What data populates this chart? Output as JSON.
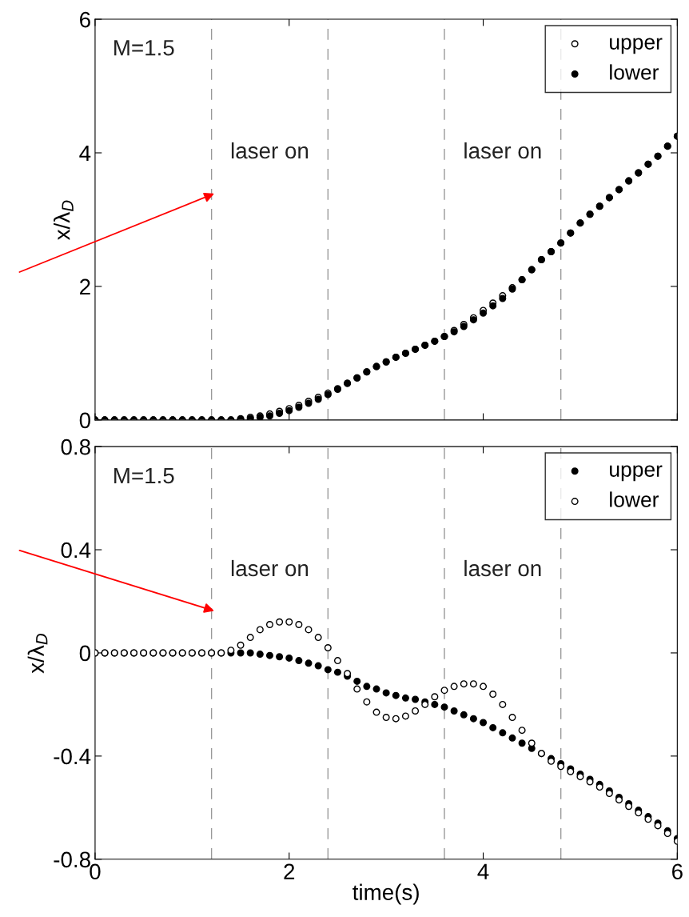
{
  "chart_data": [
    {
      "type": "scatter",
      "ylabel": "x/λ$_{D}$",
      "xlim": [
        0,
        6
      ],
      "ylim": [
        0,
        6
      ],
      "xticks": [
        0,
        2,
        4,
        6
      ],
      "yticks": [
        0,
        2,
        4,
        6
      ],
      "tick_labels": "y",
      "legend": "top right",
      "grid": false,
      "marker": "circle",
      "x": [
        0,
        0.1,
        0.2,
        0.3,
        0.4,
        0.5,
        0.6,
        0.7,
        0.8,
        0.9,
        1.0,
        1.1,
        1.2,
        1.3,
        1.4,
        1.5,
        1.6,
        1.7,
        1.8,
        1.9,
        2.0,
        2.1,
        2.2,
        2.3,
        2.4,
        2.5,
        2.6,
        2.7,
        2.8,
        2.9,
        3.0,
        3.1,
        3.2,
        3.3,
        3.4,
        3.5,
        3.6,
        3.7,
        3.8,
        3.9,
        4.0,
        4.1,
        4.2,
        4.3,
        4.4,
        4.5,
        4.6,
        4.7,
        4.8,
        4.9,
        5.0,
        5.1,
        5.2,
        5.3,
        5.4,
        5.5,
        5.6,
        5.7,
        5.8,
        5.9,
        6.0
      ],
      "series": [
        {
          "name": "upper",
          "color": "#ffffff",
          "values": [
            0,
            0,
            0,
            0,
            0,
            0,
            0,
            0,
            0,
            0,
            0,
            0,
            0,
            0,
            0,
            0.02,
            0.04,
            0.06,
            0.09,
            0.13,
            0.17,
            0.22,
            0.28,
            0.34,
            0.4,
            0.47,
            0.55,
            0.63,
            0.72,
            0.8,
            0.87,
            0.94,
            1.0,
            1.06,
            1.12,
            1.18,
            1.25,
            1.34,
            1.43,
            1.53,
            1.64,
            1.75,
            1.86,
            1.98,
            2.1,
            2.25,
            2.4,
            2.52,
            2.65,
            2.8,
            2.95,
            3.08,
            3.2,
            3.33,
            3.45,
            3.58,
            3.7,
            3.83,
            3.95,
            4.1,
            4.25
          ]
        },
        {
          "name": "lower",
          "color": "#000000",
          "values": [
            0,
            0,
            0,
            0,
            0,
            0,
            0,
            0,
            0,
            0,
            0,
            0,
            0,
            0,
            0,
            0.01,
            0.02,
            0.04,
            0.06,
            0.1,
            0.14,
            0.19,
            0.25,
            0.31,
            0.38,
            0.46,
            0.55,
            0.63,
            0.72,
            0.8,
            0.87,
            0.94,
            1.0,
            1.06,
            1.12,
            1.18,
            1.25,
            1.32,
            1.4,
            1.5,
            1.6,
            1.71,
            1.82,
            1.96,
            2.1,
            2.25,
            2.4,
            2.52,
            2.65,
            2.8,
            2.95,
            3.08,
            3.2,
            3.33,
            3.45,
            3.58,
            3.7,
            3.83,
            3.95,
            4.1,
            4.25
          ]
        }
      ],
      "ref_lines": [
        {
          "axis": "x",
          "value": 1.2,
          "color": "#999999",
          "line_style": "dashed"
        },
        {
          "axis": "x",
          "value": 2.4,
          "color": "#999999",
          "line_style": "dashed"
        },
        {
          "axis": "x",
          "value": 3.6,
          "color": "#999999",
          "line_style": "dashed"
        },
        {
          "axis": "x",
          "value": 4.8,
          "color": "#999999",
          "line_style": "dashed"
        }
      ],
      "annotations": [
        "M=1.5",
        "laser on",
        "laser on"
      ]
    },
    {
      "type": "scatter",
      "xlabel": "time(s)",
      "ylabel": "x/λ$_{D}$",
      "xlim": [
        0,
        6
      ],
      "ylim": [
        -0.8,
        0.8
      ],
      "xticks": [
        0,
        2,
        4,
        6
      ],
      "yticks": [
        -0.8,
        -0.4,
        0,
        0.4,
        0.8
      ],
      "legend": "top right",
      "grid": false,
      "marker": "circle",
      "x": [
        0,
        0.1,
        0.2,
        0.3,
        0.4,
        0.5,
        0.6,
        0.7,
        0.8,
        0.9,
        1.0,
        1.1,
        1.2,
        1.3,
        1.4,
        1.5,
        1.6,
        1.7,
        1.8,
        1.9,
        2.0,
        2.1,
        2.2,
        2.3,
        2.4,
        2.5,
        2.6,
        2.7,
        2.8,
        2.9,
        3.0,
        3.1,
        3.2,
        3.3,
        3.4,
        3.5,
        3.6,
        3.7,
        3.8,
        3.9,
        4.0,
        4.1,
        4.2,
        4.3,
        4.4,
        4.5,
        4.6,
        4.7,
        4.8,
        4.9,
        5.0,
        5.1,
        5.2,
        5.3,
        5.4,
        5.5,
        5.6,
        5.7,
        5.8,
        5.9,
        6.0
      ],
      "series": [
        {
          "name": "upper",
          "color": "#000000",
          "values": [
            0,
            0,
            0,
            0,
            0,
            0,
            0,
            0,
            0,
            0,
            0,
            0,
            0,
            0,
            0,
            0,
            0,
            -0.005,
            -0.01,
            -0.015,
            -0.02,
            -0.03,
            -0.04,
            -0.05,
            -0.065,
            -0.075,
            -0.09,
            -0.11,
            -0.13,
            -0.14,
            -0.155,
            -0.165,
            -0.175,
            -0.18,
            -0.19,
            -0.2,
            -0.21,
            -0.225,
            -0.24,
            -0.255,
            -0.27,
            -0.29,
            -0.31,
            -0.33,
            -0.35,
            -0.37,
            -0.39,
            -0.41,
            -0.43,
            -0.45,
            -0.47,
            -0.49,
            -0.51,
            -0.535,
            -0.56,
            -0.585,
            -0.61,
            -0.635,
            -0.66,
            -0.69,
            -0.72
          ]
        },
        {
          "name": "lower",
          "color": "#ffffff",
          "values": [
            0,
            0,
            0,
            0,
            0,
            0,
            0,
            0,
            0,
            0,
            0,
            0,
            0,
            0,
            0.01,
            0.03,
            0.06,
            0.09,
            0.11,
            0.12,
            0.12,
            0.11,
            0.09,
            0.06,
            0.02,
            -0.03,
            -0.08,
            -0.14,
            -0.19,
            -0.23,
            -0.25,
            -0.255,
            -0.245,
            -0.225,
            -0.2,
            -0.17,
            -0.145,
            -0.13,
            -0.12,
            -0.12,
            -0.13,
            -0.16,
            -0.2,
            -0.25,
            -0.3,
            -0.35,
            -0.39,
            -0.42,
            -0.44,
            -0.46,
            -0.48,
            -0.5,
            -0.52,
            -0.545,
            -0.57,
            -0.595,
            -0.62,
            -0.645,
            -0.67,
            -0.7,
            -0.73
          ]
        }
      ],
      "ref_lines": [
        {
          "axis": "x",
          "value": 1.2,
          "color": "#999999",
          "line_style": "dashed"
        },
        {
          "axis": "x",
          "value": 2.4,
          "color": "#999999",
          "line_style": "dashed"
        },
        {
          "axis": "x",
          "value": 3.6,
          "color": "#999999",
          "line_style": "dashed"
        },
        {
          "axis": "x",
          "value": 4.8,
          "color": "#999999",
          "line_style": "dashed"
        }
      ],
      "annotations": [
        "M=1.5",
        "laser on",
        "laser on"
      ]
    }
  ]
}
